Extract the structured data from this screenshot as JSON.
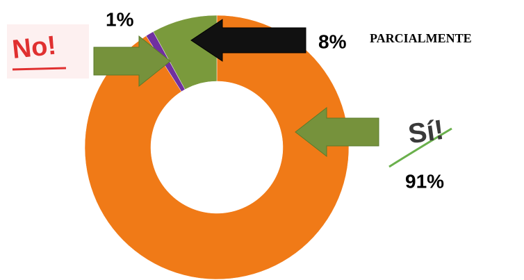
{
  "chart_data": {
    "type": "pie",
    "categories": [
      "Sí!",
      "No!",
      "PARCIALMENTE"
    ],
    "values": [
      91,
      1,
      8
    ],
    "value_labels": [
      "91%",
      "1%",
      "8%"
    ],
    "colors": [
      "#f07a17",
      "#7030a0",
      "#7a9a3c"
    ]
  }
}
